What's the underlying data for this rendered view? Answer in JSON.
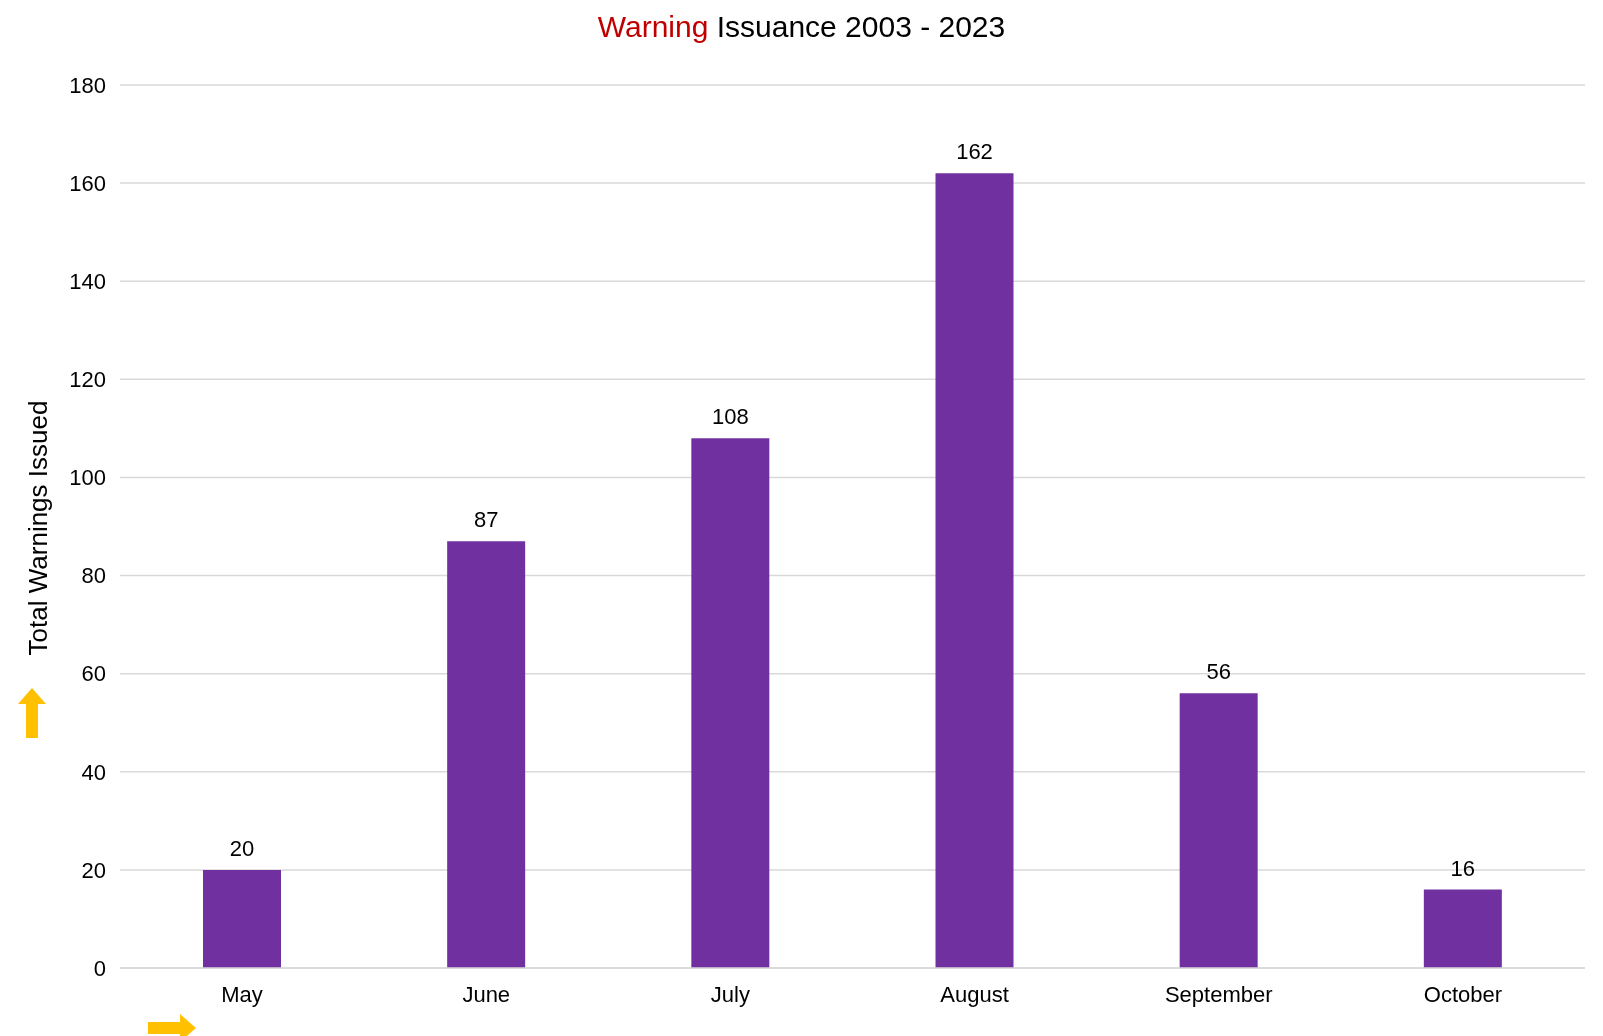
{
  "chart_data": {
    "type": "bar",
    "title": "Warning Issuance 2003 - 2023",
    "ylabel": "Total Warnings Issued",
    "categories": [
      "May",
      "June",
      "July",
      "August",
      "September",
      "October"
    ],
    "values": [
      20,
      87,
      108,
      162,
      56,
      16
    ],
    "color": "#7030a0",
    "ylim": [
      0,
      180
    ],
    "yticks": [
      0,
      20,
      40,
      60,
      80,
      100,
      120,
      140,
      160,
      180
    ],
    "grid": "y",
    "data_labels": true,
    "legend": false
  }
}
